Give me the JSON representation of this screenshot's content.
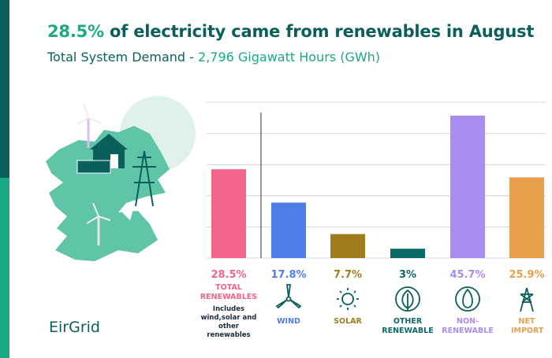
{
  "chart_data": {
    "type": "bar",
    "title": {
      "highlight": "28.5%",
      "text": "of electricity came from renewables in August"
    },
    "subtitle": {
      "text": "Total System Demand -",
      "highlight": "2,796 Gigawatt Hours (GWh)"
    },
    "categories": [
      "TOTAL RENEWABLES",
      "WIND",
      "SOLAR",
      "OTHER RENEWABLE",
      "NON-RENEWABLE",
      "NET IMPORT"
    ],
    "values": [
      28.5,
      17.8,
      7.7,
      3,
      45.7,
      25.9
    ],
    "value_labels": [
      "28.5%",
      "17.8%",
      "7.7%",
      "3%",
      "45.7%",
      "25.9%"
    ],
    "colors": [
      "#f2658a",
      "#4f7ee8",
      "#a07d1c",
      "#0b6a68",
      "#a98cf0",
      "#e8a04a"
    ],
    "note": "Includes wind,solar and other renewables",
    "ylim": [
      0,
      50
    ],
    "yticks": [
      0,
      10,
      20,
      30,
      40,
      50
    ],
    "grid": true,
    "logo": "EirGrid"
  }
}
